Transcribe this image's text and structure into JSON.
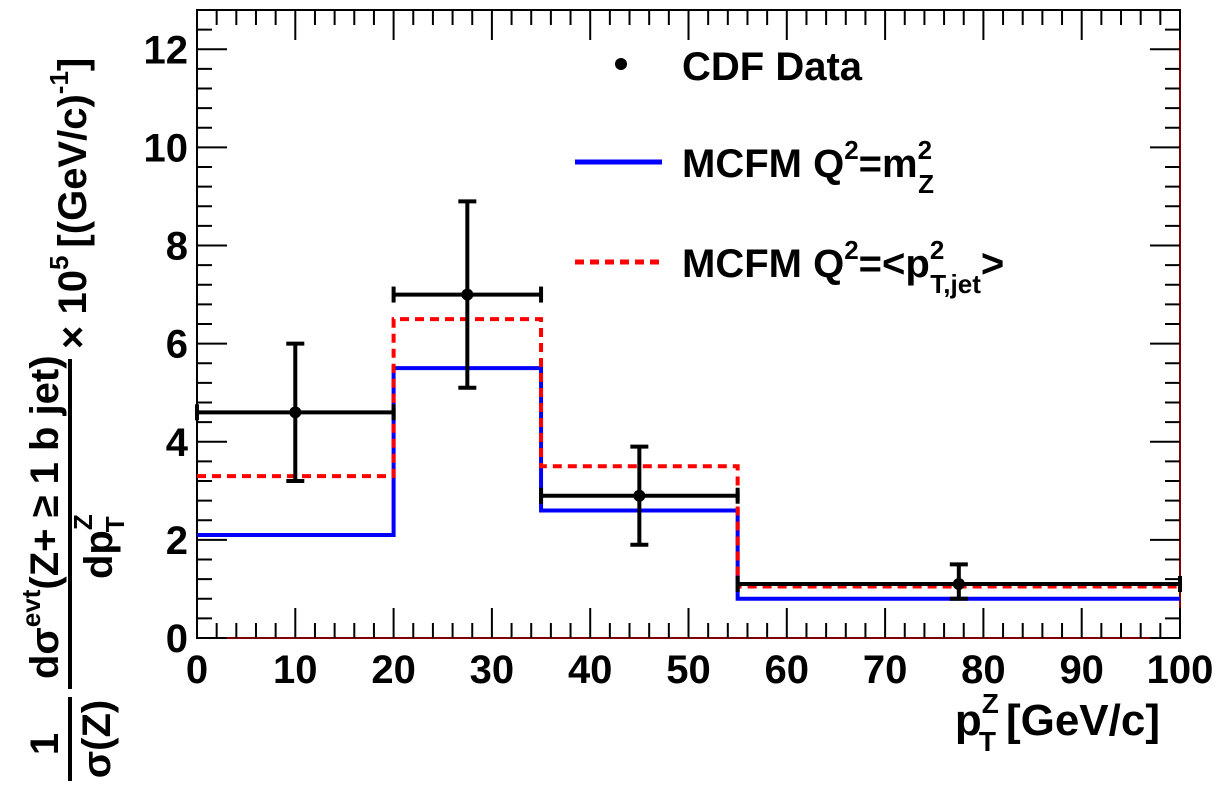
{
  "chart_data": {
    "type": "line",
    "xlim": [
      0,
      100
    ],
    "ylim": [
      0,
      12.8
    ],
    "x_ticks": [
      0,
      10,
      20,
      30,
      40,
      50,
      60,
      70,
      80,
      90,
      100
    ],
    "y_ticks": [
      0,
      2,
      4,
      6,
      8,
      10,
      12
    ],
    "x_tick_labels": [
      "0",
      "10",
      "20",
      "30",
      "40",
      "50",
      "60",
      "70",
      "80",
      "90",
      "100"
    ],
    "y_tick_labels": [
      "0",
      "2",
      "4",
      "6",
      "8",
      "10",
      "12"
    ],
    "xlabel": {
      "base": "p",
      "sup": "Z",
      "sub": "T",
      "rest": "[GeV/c]"
    },
    "ylabel": {
      "left_num": "1",
      "left_den": "σ(Z)",
      "frac_num_base": "dσ",
      "frac_num_sup": "evt",
      "frac_num_rest": "(Z+ ≥ 1 b jet)",
      "frac_den_base": "dp",
      "frac_den_sup": "Z",
      "frac_den_sub": "T",
      "scale": "× 10",
      "scale_exp": "5",
      "unit": "[(GeV/c)",
      "unit_exp": "-1",
      "unit_close": "]"
    },
    "legend_position": "top-right",
    "grid": false,
    "data": {
      "name": "CDF Data",
      "color": "#000000",
      "points": [
        {
          "x": 10,
          "y": 4.6,
          "x_low": 0,
          "x_high": 20,
          "y_low": 3.2,
          "y_high": 6.0
        },
        {
          "x": 27.5,
          "y": 7.0,
          "x_low": 20,
          "x_high": 35,
          "y_low": 5.1,
          "y_high": 8.9
        },
        {
          "x": 45,
          "y": 2.9,
          "x_low": 35,
          "x_high": 55,
          "y_low": 1.9,
          "y_high": 3.9
        },
        {
          "x": 77.5,
          "y": 1.1,
          "x_low": 55,
          "x_high": 100,
          "y_low": 0.8,
          "y_high": 1.5
        }
      ]
    },
    "series": [
      {
        "name": "MCFM  Q²=m²_Z",
        "legend_base": "MCFM  Q",
        "legend_sup": "2",
        "legend_eq": "=m",
        "legend_sup2": "2",
        "legend_sub2": "Z",
        "legend_tail": "",
        "color": "#0000ff",
        "style": "solid",
        "bins": [
          0,
          20,
          35,
          55,
          100
        ],
        "values": [
          2.1,
          5.5,
          2.6,
          0.8
        ]
      },
      {
        "name": "MCFM  Q²=<p²_T,jet>",
        "legend_base": "MCFM  Q",
        "legend_sup": "2",
        "legend_eq": "=<p",
        "legend_sup2": "2",
        "legend_sub2": "T,jet",
        "legend_tail": ">",
        "color": "#ff0000",
        "style": "dashed",
        "bins": [
          0,
          20,
          35,
          55,
          100
        ],
        "values": [
          3.3,
          6.5,
          3.5,
          1.05
        ]
      }
    ]
  }
}
